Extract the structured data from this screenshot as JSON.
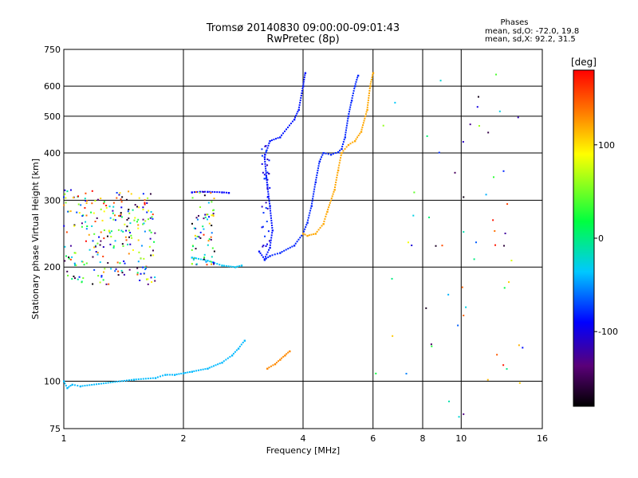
{
  "chart_data": {
    "type": "scatter",
    "title": "Tromsø 20140830 09:00:00-09:01:43",
    "subtitle": "RwPretec (8p)",
    "stats": {
      "heading": "Phases",
      "line1": "mean, sd,O: -72.0, 19.8",
      "line2": "mean, sd,X:  92.2, 31.5"
    },
    "xlabel": "Frequency [MHz]",
    "ylabel": "Stationary phase Virtual Height [km]",
    "x_scale": "log2",
    "y_scale": "log",
    "xlim": [
      1,
      16
    ],
    "ylim": [
      75,
      750
    ],
    "x_ticks": [
      1,
      2,
      4,
      6,
      8,
      10,
      16
    ],
    "y_ticks": [
      75,
      100,
      200,
      300,
      400,
      500,
      600,
      750
    ],
    "grid": true,
    "colorbar": {
      "label": "[deg]",
      "range": [
        -180,
        180
      ],
      "ticks": [
        100,
        0,
        -100
      ]
    },
    "traces": [
      {
        "phase": -80,
        "points": [
          [
            3.2,
            209
          ],
          [
            3.3,
            214
          ],
          [
            3.5,
            218
          ],
          [
            3.8,
            228
          ],
          [
            4.0,
            245
          ],
          [
            4.1,
            262
          ],
          [
            4.2,
            290
          ],
          [
            4.3,
            335
          ],
          [
            4.4,
            380
          ],
          [
            4.5,
            400
          ],
          [
            4.7,
            396
          ],
          [
            4.9,
            402
          ],
          [
            5.0,
            410
          ],
          [
            5.1,
            440
          ],
          [
            5.2,
            500
          ],
          [
            5.3,
            550
          ],
          [
            5.4,
            600
          ],
          [
            5.5,
            640
          ]
        ]
      },
      {
        "phase": -85,
        "points": [
          [
            3.1,
            220
          ],
          [
            3.2,
            210
          ],
          [
            3.3,
            225
          ],
          [
            3.35,
            250
          ],
          [
            3.3,
            290
          ],
          [
            3.25,
            330
          ],
          [
            3.2,
            390
          ],
          [
            3.3,
            430
          ],
          [
            3.5,
            440
          ],
          [
            3.8,
            490
          ],
          [
            3.9,
            520
          ],
          [
            4.0,
            600
          ],
          [
            4.05,
            650
          ]
        ]
      },
      {
        "phase": 120,
        "points": [
          [
            4.0,
            245
          ],
          [
            4.1,
            242
          ],
          [
            4.3,
            245
          ],
          [
            4.5,
            260
          ],
          [
            4.6,
            280
          ],
          [
            4.8,
            320
          ],
          [
            4.9,
            360
          ],
          [
            5.0,
            400
          ],
          [
            5.2,
            420
          ],
          [
            5.4,
            430
          ],
          [
            5.6,
            455
          ],
          [
            5.8,
            520
          ],
          [
            5.9,
            600
          ],
          [
            6.0,
            650
          ]
        ]
      },
      {
        "phase": -40,
        "points": [
          [
            1.0,
            100
          ],
          [
            1.02,
            96
          ],
          [
            1.05,
            98
          ],
          [
            1.1,
            97
          ],
          [
            1.5,
            101
          ],
          [
            1.7,
            102
          ],
          [
            1.8,
            104
          ],
          [
            1.9,
            104
          ],
          [
            2.0,
            105
          ],
          [
            2.1,
            106
          ],
          [
            2.3,
            108
          ],
          [
            2.5,
            112
          ],
          [
            2.65,
            117
          ],
          [
            2.75,
            122
          ],
          [
            2.85,
            128
          ]
        ]
      },
      {
        "phase": 130,
        "points": [
          [
            3.25,
            108
          ],
          [
            3.4,
            111
          ],
          [
            3.5,
            114
          ],
          [
            3.6,
            117
          ],
          [
            3.7,
            120
          ]
        ]
      },
      {
        "phase": -35,
        "points": [
          [
            2.1,
            212
          ],
          [
            2.3,
            208
          ],
          [
            2.5,
            202
          ],
          [
            2.7,
            200
          ],
          [
            2.8,
            202
          ]
        ]
      },
      {
        "phase": -90,
        "points": [
          [
            2.1,
            315
          ],
          [
            2.2,
            316
          ],
          [
            2.3,
            316
          ],
          [
            2.5,
            315
          ],
          [
            2.6,
            314
          ]
        ]
      }
    ]
  }
}
